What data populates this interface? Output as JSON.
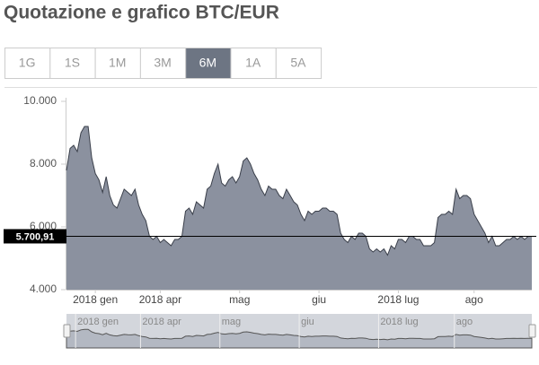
{
  "header": {
    "title": "Quotazione e grafico BTC/EUR"
  },
  "tabs": [
    {
      "label": "1G",
      "active": false
    },
    {
      "label": "1S",
      "active": false
    },
    {
      "label": "1M",
      "active": false
    },
    {
      "label": "3M",
      "active": false
    },
    {
      "label": "6M",
      "active": true
    },
    {
      "label": "1A",
      "active": false
    },
    {
      "label": "5A",
      "active": false
    }
  ],
  "chart_data": {
    "type": "area",
    "series": [
      {
        "color": "#8b919f",
        "values": [
          7800,
          8500,
          8600,
          8400,
          9000,
          9200,
          9200,
          8200,
          7700,
          7500,
          7100,
          7600,
          7000,
          6700,
          6600,
          6900,
          7200,
          7100,
          7000,
          7200,
          6700,
          6400,
          6200,
          5700,
          5600,
          5700,
          5500,
          5600,
          5500,
          5400,
          5600,
          5600,
          5700,
          6500,
          6600,
          6400,
          6800,
          6700,
          6600,
          7200,
          7300,
          7700,
          8000,
          7400,
          7300,
          7500,
          7600,
          7400,
          7600,
          8100,
          8200,
          8000,
          7700,
          7500,
          7200,
          7000,
          7300,
          7200,
          7200,
          7000,
          6900,
          7200,
          7000,
          6800,
          6700,
          6400,
          6200,
          6500,
          6400,
          6500,
          6500,
          6600,
          6600,
          6500,
          6500,
          6400,
          5800,
          5600,
          5500,
          5700,
          5600,
          5800,
          5800,
          5700,
          5300,
          5200,
          5300,
          5200,
          5300,
          5100,
          5400,
          5300,
          5600,
          5600,
          5500,
          5700,
          5700,
          5600,
          5600,
          5400,
          5400,
          5400,
          5500,
          6300,
          6400,
          6400,
          6500,
          6400,
          7200,
          6900,
          7000,
          7000,
          6900,
          6400,
          6200,
          6000,
          5800,
          5500,
          5700,
          5400,
          5400,
          5500,
          5600,
          5600,
          5700,
          5600,
          5700,
          5600,
          5700,
          5700
        ]
      }
    ],
    "xlim": [
      0,
      129
    ],
    "xticks": [
      {
        "value": 8,
        "label": "2018 gen"
      },
      {
        "value": 26,
        "label": "2018 apr"
      },
      {
        "value": 48,
        "label": "mag"
      },
      {
        "value": 70,
        "label": "giu"
      },
      {
        "value": 92,
        "label": "2018 lug"
      },
      {
        "value": 113,
        "label": "ago"
      }
    ],
    "ylim": [
      4000,
      10000
    ],
    "yticks": [
      {
        "value": 4000,
        "label": "4.000"
      },
      {
        "value": 6000,
        "label": "6.000"
      },
      {
        "value": 8000,
        "label": "8.000"
      },
      {
        "value": 10000,
        "label": "10.000"
      }
    ],
    "last_price": {
      "value": 5700.91,
      "label": "5.700,91"
    },
    "grid": false
  }
}
